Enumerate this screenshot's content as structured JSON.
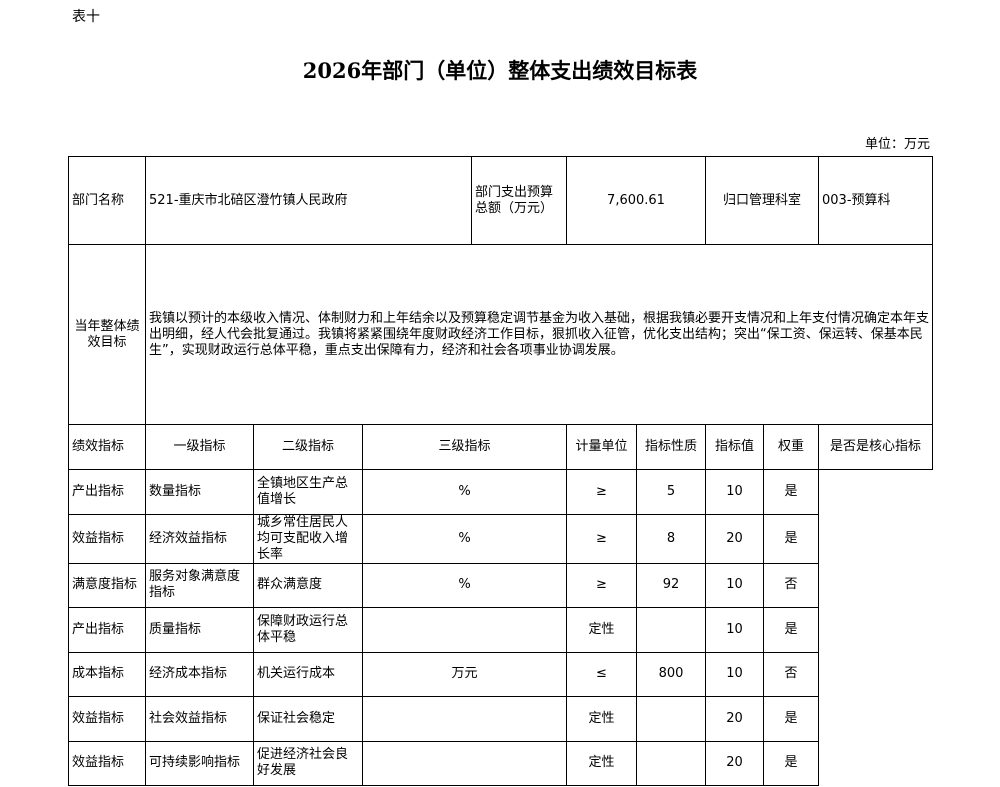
{
  "header": {
    "table_no": "表十",
    "title": "2026年部门（单位）整体支出绩效目标表",
    "unit": "单位：万元"
  },
  "info": {
    "dept_name_label": "部门名称",
    "dept_name": "521-重庆市北碚区澄竹镇人民政府",
    "budget_label": "部门支出预算总额（万元）",
    "budget": "7,600.61",
    "office_label": "归口管理科室",
    "office": "003-预算科"
  },
  "goal": {
    "label": "当年整体绩效目标",
    "text": "我镇以预计的本级收入情况、体制财力和上年结余以及预算稳定调节基金为收入基础，根据我镇必要开支情况和上年支付情况确定本年支出明细，经人代会批复通过。我镇将紧紧围绕年度财政经济工作目标，狠抓收入征管，优化支出结构；突出“保工资、保运转、保基本民生”，实现财政运行总体平稳，重点支出保障有力，经济和社会各项事业协调发展。"
  },
  "indicators": {
    "label": "绩效指标",
    "columns": [
      "一级指标",
      "二级指标",
      "三级指标",
      "计量单位",
      "指标性质",
      "指标值",
      "权重",
      "是否是核心指标"
    ],
    "rows": [
      [
        "产出指标",
        "数量指标",
        "全镇地区生产总值增长",
        "%",
        "≥",
        "5",
        "10",
        "是"
      ],
      [
        "效益指标",
        "经济效益指标",
        "城乡常住居民人均可支配收入增长率",
        "%",
        "≥",
        "8",
        "20",
        "是"
      ],
      [
        "满意度指标",
        "服务对象满意度指标",
        "群众满意度",
        "%",
        "≥",
        "92",
        "10",
        "否"
      ],
      [
        "产出指标",
        "质量指标",
        "保障财政运行总体平稳",
        "",
        "定性",
        "",
        "10",
        "是"
      ],
      [
        "成本指标",
        "经济成本指标",
        "机关运行成本",
        "万元",
        "≤",
        "800",
        "10",
        "否"
      ],
      [
        "效益指标",
        "社会效益指标",
        "保证社会稳定",
        "",
        "定性",
        "",
        "20",
        "是"
      ],
      [
        "效益指标",
        "可持续影响指标",
        "促进经济社会良好发展",
        "",
        "定性",
        "",
        "20",
        "是"
      ]
    ]
  }
}
